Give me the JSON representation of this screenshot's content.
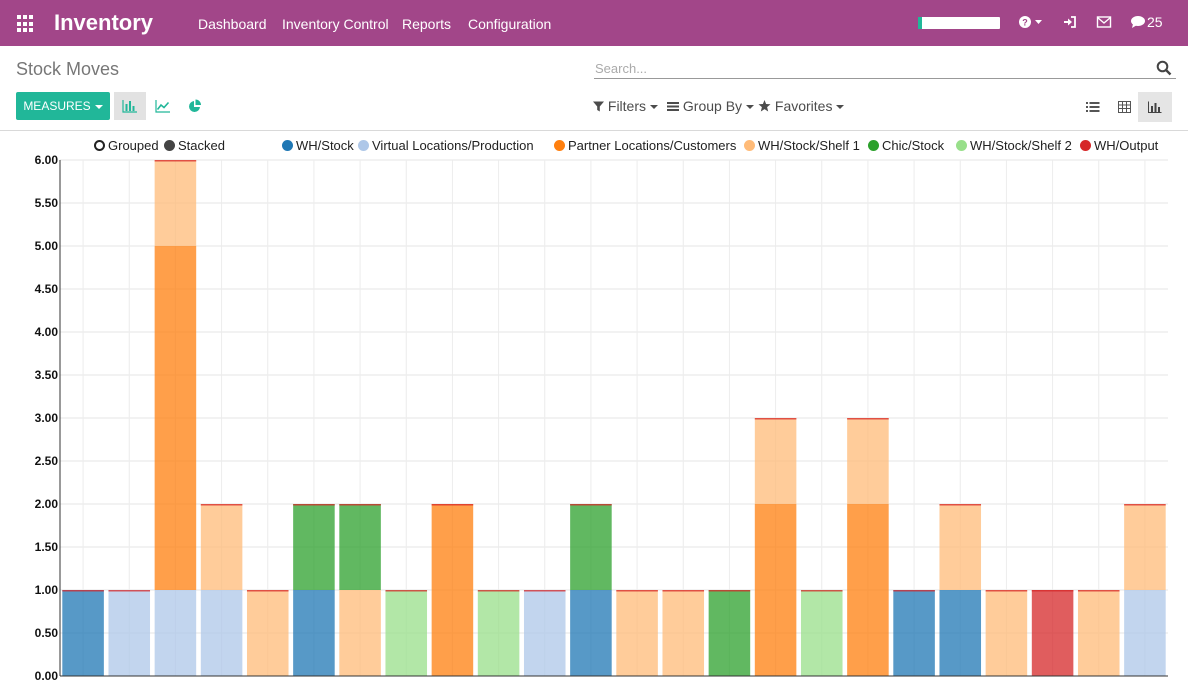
{
  "topbar": {
    "app_title": "Inventory",
    "menu": [
      "Dashboard",
      "Inventory Control",
      "Reports",
      "Configuration"
    ],
    "progress": 0.05,
    "help_icon": "question-circle-icon",
    "signin_icon": "sign-in-icon",
    "mail_icon": "envelope-icon",
    "chat_icon": "comment-icon",
    "chat_count": "25"
  },
  "control_panel": {
    "breadcrumb": "Stock Moves",
    "search_placeholder": "Search...",
    "measures_label": "MEASURES",
    "filters_label": "Filters",
    "groupby_label": "Group By",
    "favorites_label": "Favorites"
  },
  "legend": {
    "grouped": "Grouped",
    "stacked": "Stacked"
  },
  "colors": {
    "topbar": "#a24689",
    "accent": "#21b799"
  },
  "chart_data": {
    "type": "bar",
    "stacked": true,
    "grid": true,
    "legend_position": "top",
    "ylim": [
      0,
      6
    ],
    "yticks": [
      "0.00",
      "0.50",
      "1.00",
      "1.50",
      "2.00",
      "2.50",
      "3.00",
      "3.50",
      "4.00",
      "4.50",
      "5.00",
      "5.50",
      "6.00"
    ],
    "xlabel": "",
    "ylabel": "",
    "categories_count": 24,
    "series": [
      {
        "name": "WH/Stock",
        "color": "#1f77b4",
        "values": [
          1,
          0,
          0,
          0,
          0,
          1,
          0,
          0,
          0,
          0,
          0,
          1,
          0,
          0,
          0,
          0,
          0,
          0,
          1,
          1,
          0,
          0,
          0,
          0
        ]
      },
      {
        "name": "Virtual Locations/Production",
        "color": "#aec7e8",
        "values": [
          0,
          1,
          1,
          1,
          0,
          0,
          0,
          0,
          0,
          0,
          1,
          0,
          0,
          0,
          0,
          0,
          0,
          0,
          0,
          0,
          0,
          0,
          0,
          1
        ]
      },
      {
        "name": "Partner Locations/Customers",
        "color": "#ff7f0e",
        "values": [
          0,
          0,
          4,
          0,
          0,
          0,
          0,
          0,
          2,
          0,
          0,
          0,
          0,
          0,
          0,
          2,
          0,
          2,
          0,
          0,
          0,
          0,
          0,
          0
        ]
      },
      {
        "name": "WH/Stock/Shelf 1",
        "color": "#ffbb78",
        "values": [
          0,
          0,
          1,
          1,
          1,
          0,
          1,
          0,
          0,
          0,
          0,
          0,
          1,
          1,
          0,
          1,
          0,
          1,
          0,
          1,
          1,
          0,
          1,
          1
        ]
      },
      {
        "name": "Chic/Stock",
        "color": "#2ca02c",
        "values": [
          0,
          0,
          0,
          0,
          0,
          1,
          1,
          0,
          0,
          0,
          0,
          1,
          0,
          0,
          1,
          0,
          0,
          0,
          0,
          0,
          0,
          0,
          0,
          0
        ]
      },
      {
        "name": "WH/Stock/Shelf 2",
        "color": "#98df8a",
        "values": [
          0,
          0,
          0,
          0,
          0,
          0,
          0,
          1,
          0,
          1,
          0,
          0,
          0,
          0,
          0,
          0,
          1,
          0,
          0,
          0,
          0,
          0,
          0,
          0
        ]
      },
      {
        "name": "WH/Output",
        "color": "#d62728",
        "values": [
          0,
          0,
          0,
          0,
          0,
          0,
          0,
          0,
          0,
          0,
          0,
          0,
          0,
          0,
          0,
          0,
          0,
          0,
          0,
          0,
          0,
          1,
          0,
          0
        ]
      }
    ]
  }
}
